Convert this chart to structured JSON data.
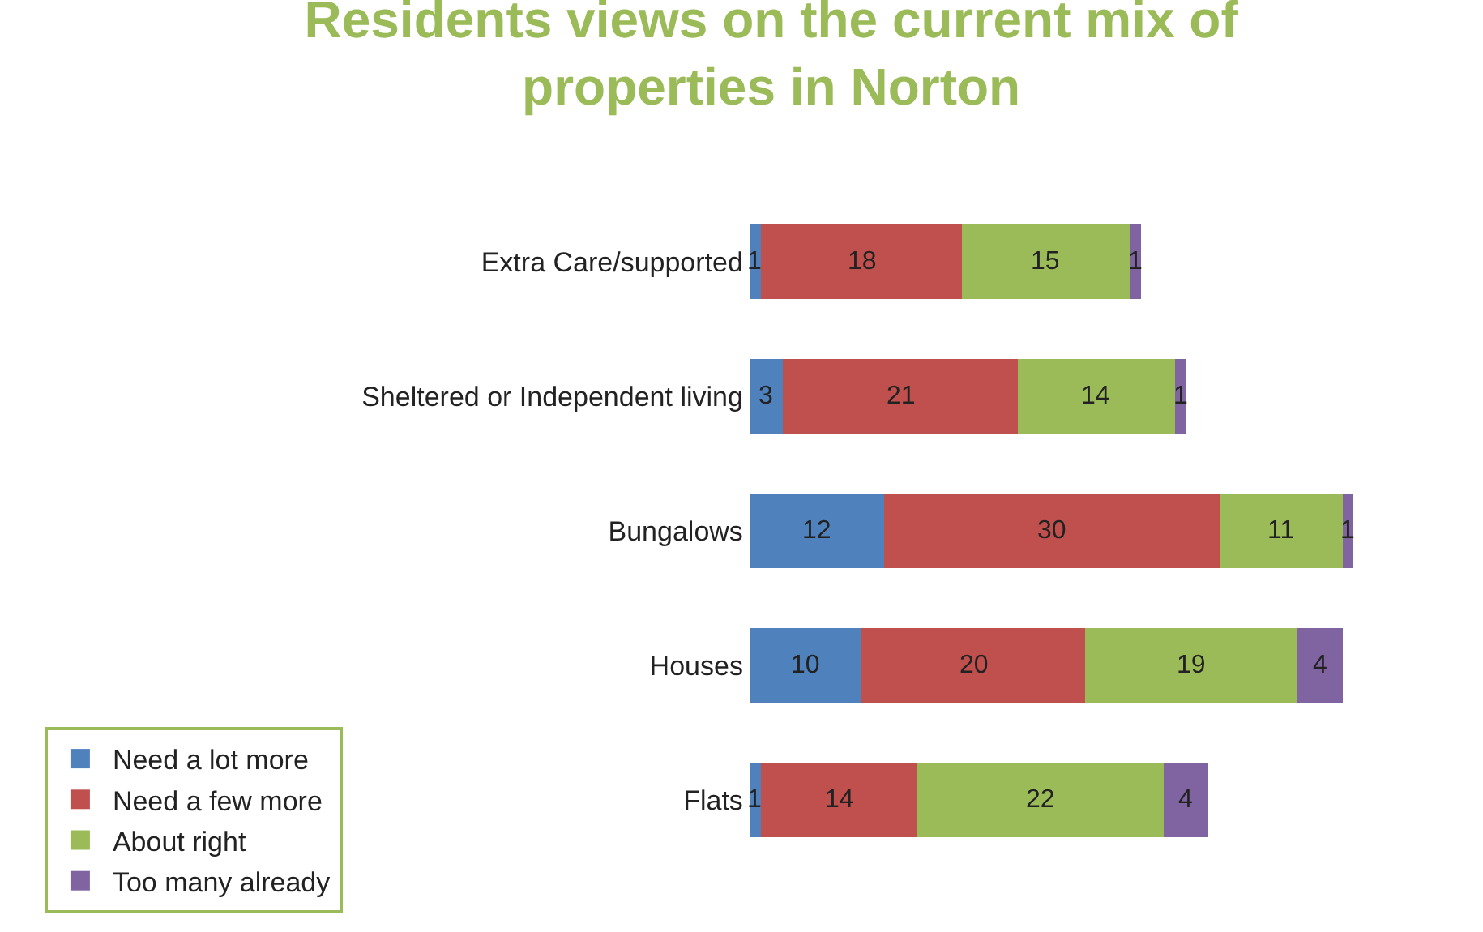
{
  "chart_data": {
    "type": "bar",
    "title": "Residents views on the current mix of properties in Norton",
    "orientation": "horizontal",
    "stacked": true,
    "data_labels": true,
    "categories": [
      "Extra Care/supported",
      "Sheltered or Independent living",
      "Bungalows",
      "Houses",
      "Flats"
    ],
    "series": [
      {
        "name": "Need a lot more",
        "color": "#4f81bd",
        "values": [
          1,
          3,
          12,
          10,
          1
        ]
      },
      {
        "name": "Need a few more",
        "color": "#c0504d",
        "values": [
          18,
          21,
          30,
          20,
          14
        ]
      },
      {
        "name": "About right",
        "color": "#9bbb59",
        "values": [
          15,
          14,
          11,
          19,
          22
        ]
      },
      {
        "name": "Too many already",
        "color": "#8064a2",
        "values": [
          1,
          1,
          1,
          4,
          4
        ]
      }
    ],
    "tick_labels": "y",
    "legend": "bottom left"
  }
}
